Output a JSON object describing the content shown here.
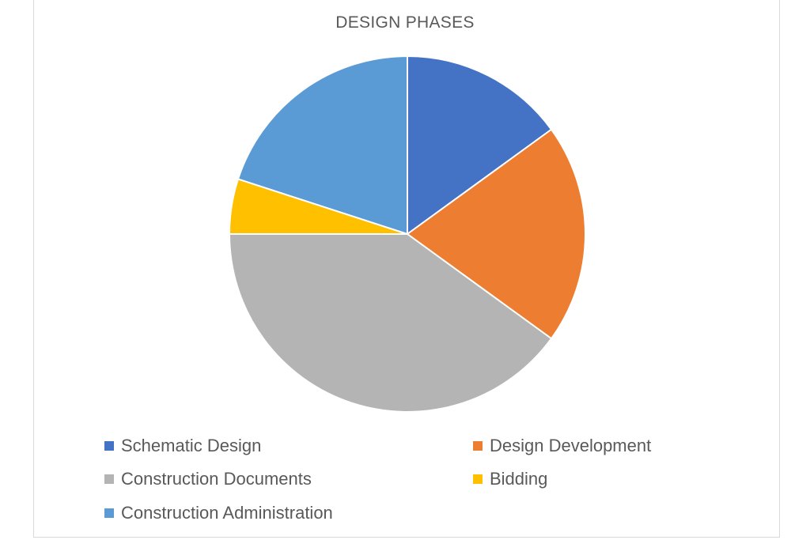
{
  "chart_data": {
    "type": "pie",
    "title": "DESIGN PHASES",
    "categories": [
      "Schematic Design",
      "Design Development",
      "Construction Documents",
      "Bidding",
      "Construction Administration"
    ],
    "values": [
      15,
      20,
      40,
      5,
      20
    ],
    "colors": [
      "#4472c4",
      "#ed7d31",
      "#b4b4b4",
      "#ffc000",
      "#5b9bd5"
    ],
    "legend_position": "bottom"
  }
}
